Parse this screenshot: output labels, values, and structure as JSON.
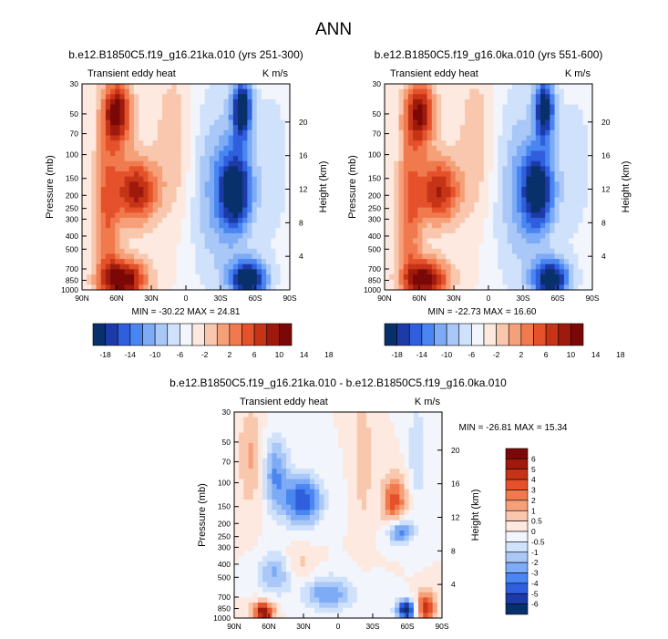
{
  "page": {
    "title": "ANN"
  },
  "colors": {
    "div": [
      "#08306b",
      "#1c3aa8",
      "#2f5fdc",
      "#4a86f2",
      "#7eabf5",
      "#a9c8f7",
      "#cfe1fb",
      "#f2f5fb",
      "#fde9df",
      "#f9c7ad",
      "#f6a07a",
      "#f07a4e",
      "#e4512a",
      "#c63417",
      "#9e1a0c",
      "#7a0806"
    ]
  },
  "chart_data": [
    {
      "type": "heatmap",
      "title": "b.e12.B1850C5.f19_g16.21ka.010 (yrs 251-300)",
      "left_label": "Transient eddy heat",
      "right_label": "K m/s",
      "ylabel": "Pressure (mb)",
      "y2label": "Height (km)",
      "x_ticks": [
        "90N",
        "60N",
        "30N",
        "0",
        "30S",
        "60S",
        "90S"
      ],
      "y_ticks": [
        "30",
        "50",
        "70",
        "100",
        "150",
        "200",
        "250",
        "300",
        "400",
        "500",
        "700",
        "850",
        "1000"
      ],
      "y2_ticks": [
        "20",
        "16",
        "12",
        "8",
        "4"
      ],
      "min_max": "MIN = -30.22   MAX =  24.81",
      "colorbar_labels": [
        "-18",
        "-14",
        "-10",
        "-6",
        "-2",
        "2",
        "6",
        "10",
        "14",
        "18"
      ]
    },
    {
      "type": "heatmap",
      "title": "b.e12.B1850C5.f19_g16.0ka.010 (yrs 551-600)",
      "left_label": "Transient eddy heat",
      "right_label": "K m/s",
      "ylabel": "Pressure (mb)",
      "y2label": "Height (km)",
      "x_ticks": [
        "90N",
        "60N",
        "30N",
        "0",
        "30S",
        "60S",
        "90S"
      ],
      "y_ticks": [
        "30",
        "50",
        "70",
        "100",
        "150",
        "200",
        "250",
        "300",
        "400",
        "500",
        "700",
        "850",
        "1000"
      ],
      "y2_ticks": [
        "20",
        "16",
        "12",
        "8",
        "4"
      ],
      "min_max": "MIN = -22.73   MAX =  16.60",
      "colorbar_labels": [
        "-18",
        "-14",
        "-10",
        "-6",
        "-2",
        "2",
        "6",
        "10",
        "14",
        "18"
      ]
    },
    {
      "type": "heatmap",
      "title": "b.e12.B1850C5.f19_g16.21ka.010 - b.e12.B1850C5.f19_g16.0ka.010",
      "left_label": "Transient eddy heat",
      "right_label": "K m/s",
      "ylabel": "Pressure (mb)",
      "y2label": "Height (km)",
      "x_ticks": [
        "90N",
        "60N",
        "30N",
        "0",
        "30S",
        "60S",
        "90S"
      ],
      "y_ticks": [
        "30",
        "50",
        "70",
        "100",
        "150",
        "200",
        "250",
        "300",
        "400",
        "500",
        "700",
        "850",
        "1000"
      ],
      "y2_ticks": [
        "20",
        "16",
        "12",
        "8",
        "4"
      ],
      "min_max": "MIN = -26.81   MAX =  15.34",
      "colorbar_labels": [
        "6",
        "5",
        "4",
        "3",
        "2",
        "1",
        "0.5",
        "0",
        "-0.5",
        "-1",
        "-2",
        "-3",
        "-4",
        "-5",
        "-6"
      ]
    }
  ]
}
